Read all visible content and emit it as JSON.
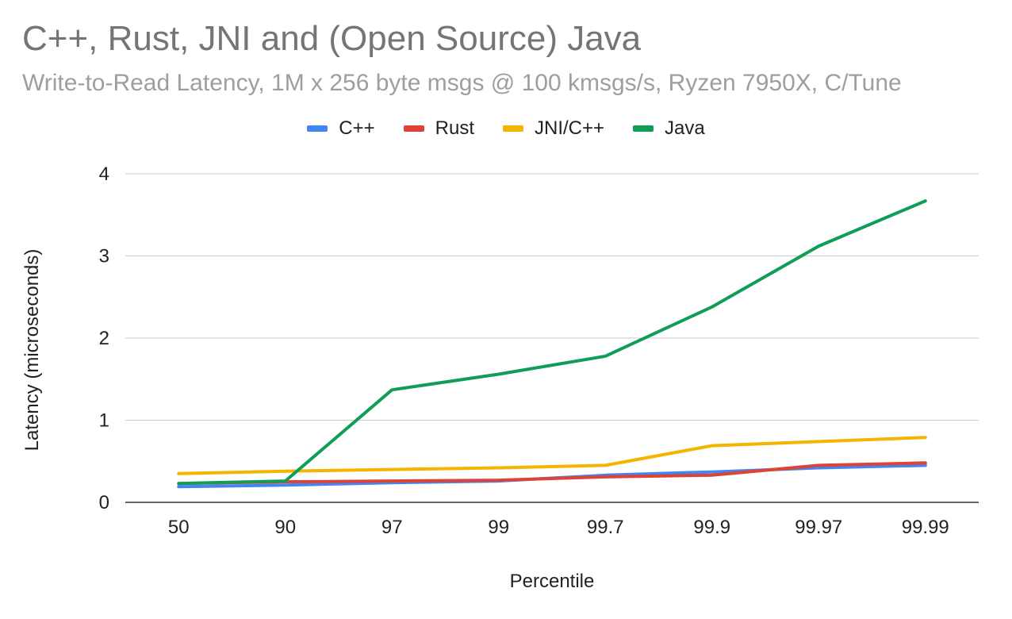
{
  "chart_data": {
    "type": "line",
    "title": "C++, Rust, JNI and (Open Source) Java",
    "subtitle": "Write-to-Read Latency, 1M x 256 byte msgs @ 100 kmsgs/s, Ryzen 7950X, C/Tune",
    "xlabel": "Percentile",
    "ylabel": "Latency (microseconds)",
    "categories": [
      "50",
      "90",
      "97",
      "99",
      "99.7",
      "99.9",
      "99.97",
      "99.99"
    ],
    "ylim": [
      0,
      4
    ],
    "yticks": [
      "0",
      "1",
      "2",
      "3",
      "4"
    ],
    "grid": true,
    "legend_position": "top",
    "series": [
      {
        "name": "C++",
        "color": "#4285f4",
        "values": [
          0.19,
          0.21,
          0.24,
          0.26,
          0.33,
          0.37,
          0.42,
          0.45
        ]
      },
      {
        "name": "Rust",
        "color": "#db4437",
        "values": [
          0.23,
          0.25,
          0.26,
          0.27,
          0.31,
          0.33,
          0.45,
          0.48
        ]
      },
      {
        "name": "JNI/C++",
        "color": "#f4b400",
        "values": [
          0.35,
          0.38,
          0.4,
          0.42,
          0.45,
          0.69,
          0.74,
          0.79
        ]
      },
      {
        "name": "Java",
        "color": "#0f9d58",
        "values": [
          0.23,
          0.26,
          1.37,
          1.56,
          1.78,
          2.38,
          3.12,
          3.67
        ]
      }
    ]
  }
}
